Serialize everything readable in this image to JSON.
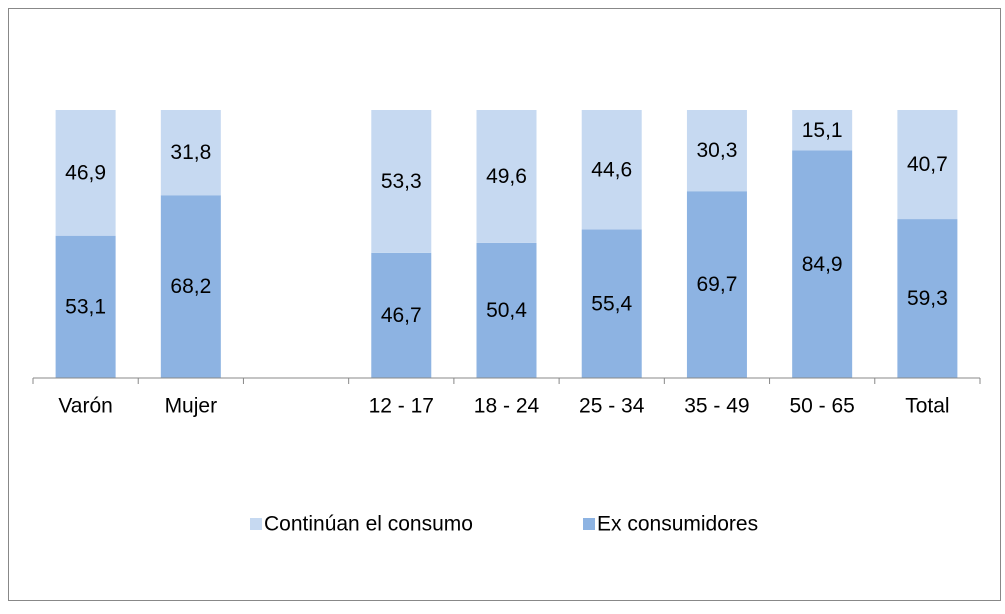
{
  "chart_data": {
    "type": "stacked_bar",
    "categories": [
      "Varón",
      "Mujer",
      null,
      "12 - 17",
      "18 - 24",
      "25 - 34",
      "35 - 49",
      "50 - 65",
      "Total"
    ],
    "series": [
      {
        "name": "Continúan el consumo",
        "color": "#c6d9f1",
        "values": [
          46.9,
          31.8,
          null,
          53.3,
          49.6,
          44.6,
          30.3,
          15.1,
          40.7
        ],
        "value_labels": [
          "46,9",
          "31,8",
          null,
          "53,3",
          "49,6",
          "44,6",
          "30,3",
          "15,1",
          "40,7"
        ]
      },
      {
        "name": "Ex consumidores",
        "color": "#8db3e2",
        "values": [
          53.1,
          68.2,
          null,
          46.7,
          50.4,
          55.4,
          69.7,
          84.9,
          59.3
        ],
        "value_labels": [
          "53,1",
          "68,2",
          null,
          "46,7",
          "50,4",
          "55,4",
          "69,7",
          "84,9",
          "59,3"
        ]
      }
    ],
    "ylim": [
      0,
      100
    ],
    "legend": "bottom"
  }
}
